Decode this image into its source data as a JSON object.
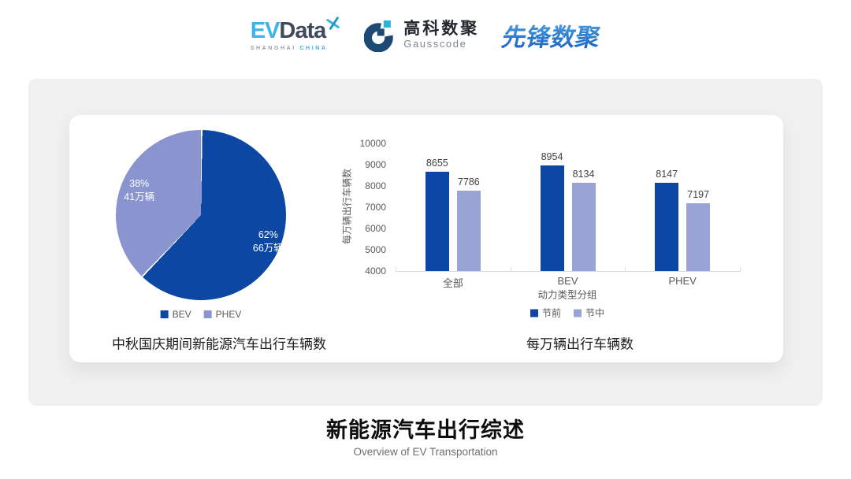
{
  "header": {
    "evdata": {
      "ev": "EV",
      "data": "Data",
      "sub_left": "SHANGHAI",
      "sub_right": "CHINA"
    },
    "gausscode": {
      "cn": "高科数聚",
      "en": "Gausscode"
    },
    "pioneer": {
      "text": "先锋数聚"
    }
  },
  "colors": {
    "brand_cyan": "#3db3e6",
    "brand_dark_slate": "#3e4a5c",
    "gauss_navy": "#1d4a74",
    "gauss_cyan": "#2cb3d6",
    "pioneer_blue": "#2d7ccf",
    "panel_bg": "#f0f0f1",
    "dark_blue_series": "#0d47a5",
    "light_purple_series": "#99a3d6",
    "pie_phev": "#8a94cf",
    "axis_text": "#595959",
    "value_text": "#404040"
  },
  "chart_data": [
    {
      "type": "pie",
      "title": "中秋国庆期间新能源汽车出行车辆数",
      "start_angle_deg": 0,
      "slices": [
        {
          "label": "BEV",
          "percent": 62,
          "amount_label": "66万辆",
          "color": "#0c47a4"
        },
        {
          "label": "PHEV",
          "percent": 38,
          "amount_label": "41万辆",
          "color": "#8a94cf"
        }
      ],
      "legend_position": "bottom"
    },
    {
      "type": "bar",
      "title": "每万辆出行车辆数",
      "categories": [
        "全部",
        "BEV",
        "PHEV"
      ],
      "series": [
        {
          "name": "节前",
          "color": "#0d47a5",
          "values": [
            8655,
            8954,
            8147
          ]
        },
        {
          "name": "节中",
          "color": "#99a3d6",
          "values": [
            7786,
            8134,
            7197
          ]
        }
      ],
      "xlabel": "动力类型分组",
      "ylabel": "每万辆出行车辆数",
      "ylim": [
        4000,
        10000
      ],
      "ytick_step": 1000,
      "grid": false,
      "legend_position": "bottom",
      "data_labels": true
    }
  ],
  "footer": {
    "title": "新能源汽车出行综述",
    "subtitle": "Overview of EV Transportation"
  }
}
